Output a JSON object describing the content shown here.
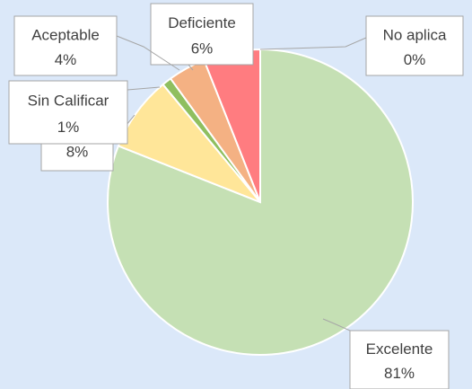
{
  "chart_data": {
    "type": "pie",
    "categories": [
      "Excelente",
      null,
      "Sin Calificar",
      "Aceptable",
      "Deficiente",
      "No aplica"
    ],
    "values": [
      81,
      8,
      1,
      4,
      6,
      0
    ],
    "value_labels": [
      "81%",
      "8%",
      "1%",
      "4%",
      "6%",
      "0%"
    ],
    "colors": [
      "#c5e0b4",
      "#ffe699",
      "#8fbf5f",
      "#f4b183",
      "#ff7c80",
      "#bdd7ee"
    ]
  }
}
